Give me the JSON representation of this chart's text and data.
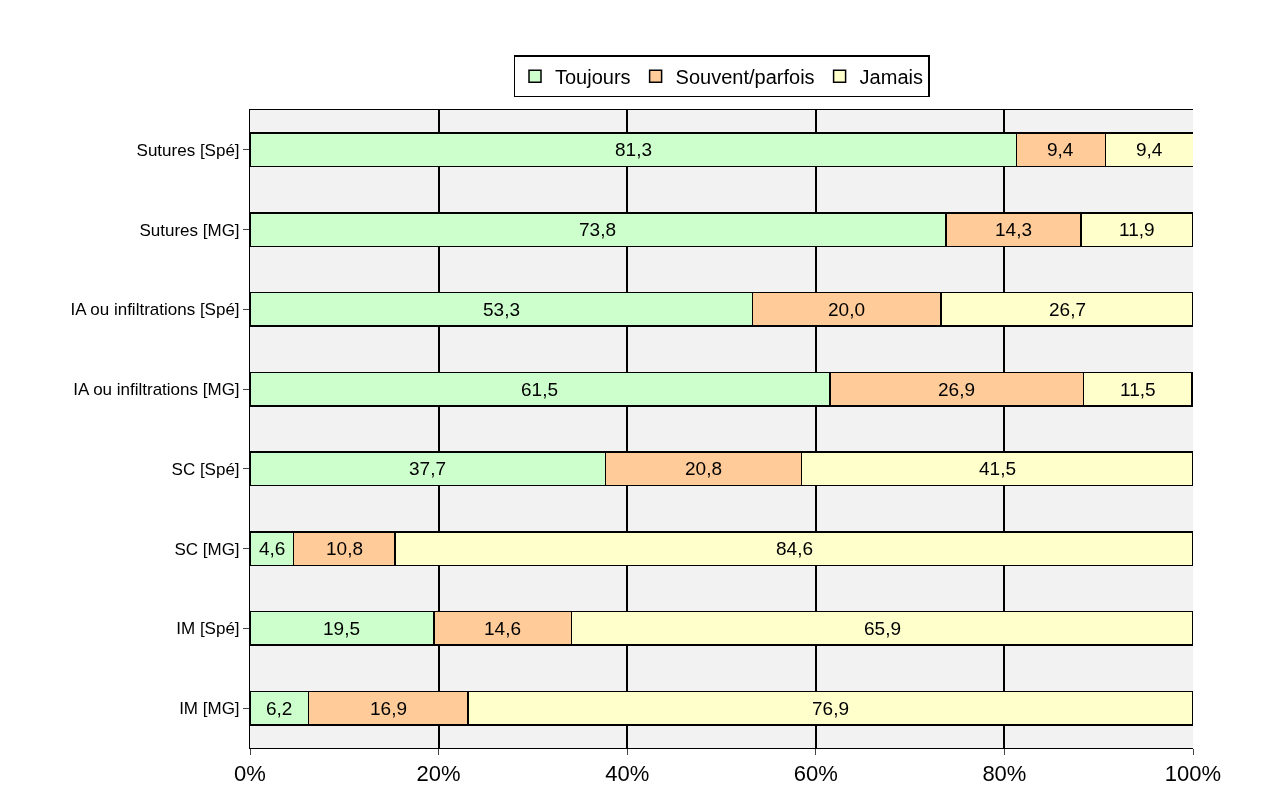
{
  "chart_data": {
    "type": "bar",
    "orientation": "horizontal",
    "stacked": true,
    "categories": [
      "Sutures [Spé]",
      "Sutures [MG]",
      "IA ou infiltrations [Spé]",
      "IA ou infiltrations [MG]",
      "SC [Spé]",
      "SC [MG]",
      "IM [Spé]",
      "IM [MG]"
    ],
    "series": [
      {
        "name": "Toujours",
        "color": "#ccffcc",
        "values": [
          81.3,
          73.8,
          53.3,
          61.5,
          37.7,
          4.6,
          19.5,
          6.2
        ],
        "value_labels": [
          "81,3",
          "73,8",
          "53,3",
          "61,5",
          "37,7",
          "4,6",
          "19,5",
          "6,2"
        ]
      },
      {
        "name": "Souvent/parfois",
        "color": "#ffcc99",
        "values": [
          9.4,
          14.3,
          20.0,
          26.9,
          20.8,
          10.8,
          14.6,
          16.9
        ],
        "value_labels": [
          "9,4",
          "14,3",
          "20,0",
          "26,9",
          "20,8",
          "10,8",
          "14,6",
          "16,9"
        ]
      },
      {
        "name": "Jamais",
        "color": "#ffffcc",
        "values": [
          9.4,
          11.9,
          26.7,
          11.5,
          41.5,
          84.6,
          65.9,
          76.9
        ],
        "value_labels": [
          "9,4",
          "11,9",
          "26,7",
          "11,5",
          "41,5",
          "84,6",
          "65,9",
          "76,9"
        ]
      }
    ],
    "xlim": [
      0,
      100
    ],
    "xticks": [
      {
        "value": 0,
        "label": "0%"
      },
      {
        "value": 20,
        "label": "20%"
      },
      {
        "value": 40,
        "label": "40%"
      },
      {
        "value": 60,
        "label": "60%"
      },
      {
        "value": 80,
        "label": "80%"
      },
      {
        "value": 100,
        "label": "100%"
      }
    ],
    "grid": "x",
    "legend": "top"
  }
}
